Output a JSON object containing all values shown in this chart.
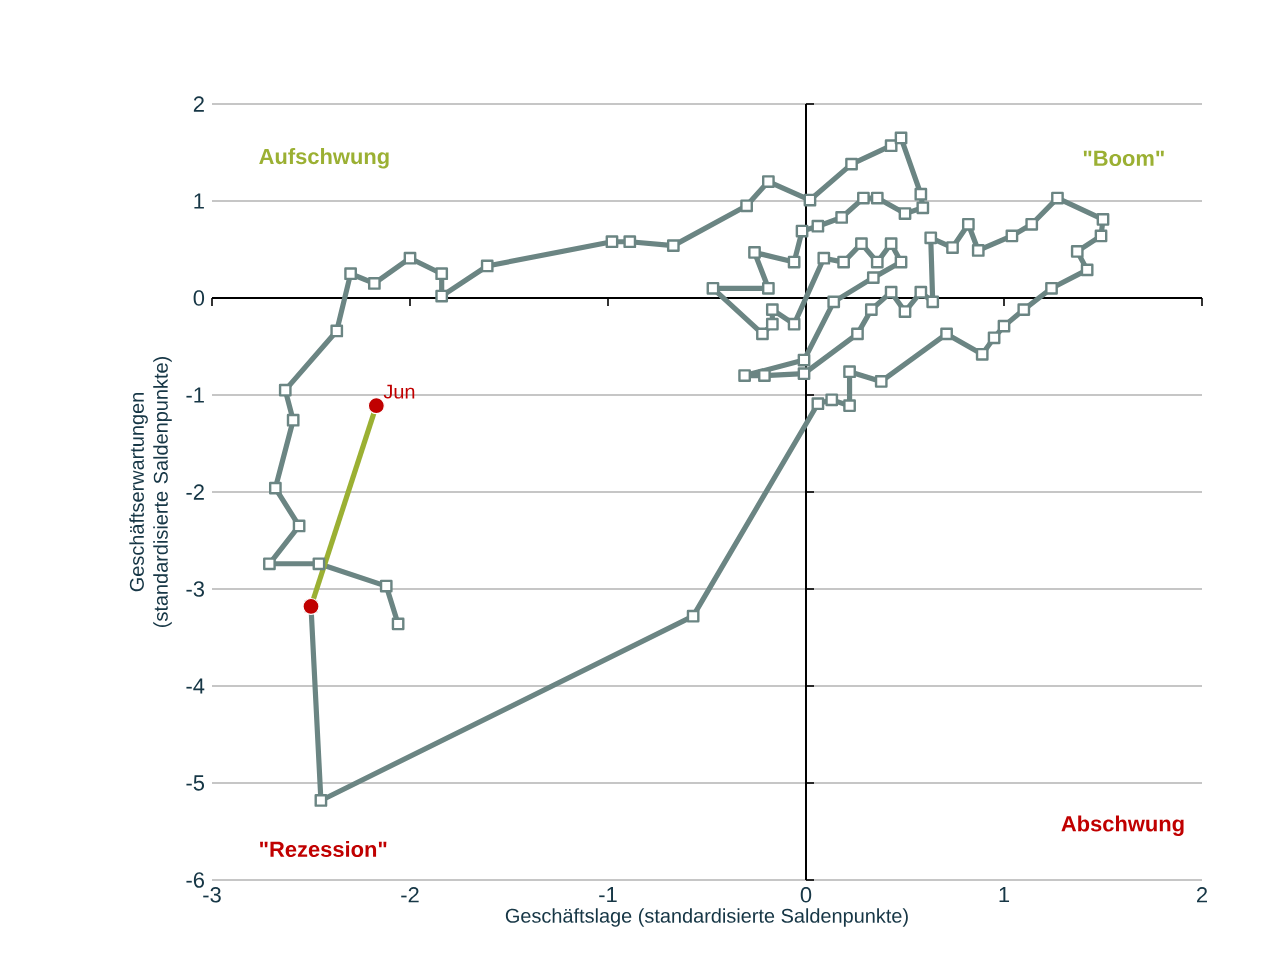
{
  "chart_data": {
    "type": "line",
    "xlabel": "Geschäftslage (standardisierte Saldenpunkte)",
    "ylabel": "Geschäftserwartungen (standardisierte Saldenpunkte)",
    "xlim": [
      -3,
      2
    ],
    "ylim": [
      -6,
      2
    ],
    "xticks": [
      -3,
      -2,
      -1,
      0,
      1,
      2
    ],
    "yticks": [
      -6,
      -5,
      -4,
      -3,
      -2,
      -1,
      0,
      1,
      2
    ],
    "grid": "y",
    "ref_lines": [
      {
        "axis": "x",
        "value": 0,
        "color": "#000000"
      }
    ],
    "series": [
      {
        "type": "line",
        "color": "#6b8583",
        "marker": "square",
        "x": [
          -2.06,
          -2.12,
          -2.46,
          -2.71,
          -2.56,
          -2.68,
          -2.59,
          -2.63,
          -2.37,
          -2.3,
          -2.18,
          -2.0,
          -1.84,
          -1.84,
          -1.61,
          -0.98,
          -0.89,
          -0.67,
          -0.3,
          -0.19,
          0.02,
          0.23,
          0.43,
          0.48,
          0.58,
          0.59,
          0.5,
          0.36,
          0.29,
          0.18,
          0.06,
          -0.02,
          -0.06,
          -0.26,
          -0.19,
          -0.47,
          -0.22,
          -0.17,
          -0.17,
          -0.06,
          0.09,
          0.19,
          0.28,
          0.36,
          0.43,
          0.48,
          0.34,
          0.14,
          -0.01,
          -0.31,
          -0.21,
          -0.01,
          0.26,
          0.33,
          0.43,
          0.5,
          0.58,
          0.64,
          0.63,
          0.74,
          0.82,
          0.87,
          1.04,
          1.14,
          1.27,
          1.5,
          1.49,
          1.37,
          1.42,
          1.24,
          1.1,
          1.0,
          0.95,
          0.89,
          0.71,
          0.38,
          0.22,
          0.22,
          0.13,
          0.06,
          -0.57,
          -2.45,
          -2.5
        ],
        "values": [
          -3.36,
          -2.97,
          -2.74,
          -2.74,
          -2.35,
          -1.96,
          -1.26,
          -0.95,
          -0.34,
          0.25,
          0.15,
          0.41,
          0.25,
          0.02,
          0.33,
          0.58,
          0.58,
          0.54,
          0.95,
          1.2,
          1.01,
          1.38,
          1.57,
          1.65,
          1.07,
          0.93,
          0.87,
          1.03,
          1.03,
          0.83,
          0.74,
          0.69,
          0.37,
          0.47,
          0.1,
          0.1,
          -0.37,
          -0.27,
          -0.12,
          -0.27,
          0.41,
          0.37,
          0.56,
          0.37,
          0.56,
          0.37,
          0.21,
          -0.04,
          -0.64,
          -0.8,
          -0.8,
          -0.78,
          -0.37,
          -0.12,
          0.06,
          -0.14,
          0.06,
          -0.04,
          0.62,
          0.52,
          0.76,
          0.49,
          0.64,
          0.76,
          1.03,
          0.81,
          0.64,
          0.48,
          0.29,
          0.1,
          -0.12,
          -0.29,
          -0.41,
          -0.58,
          -0.37,
          -0.86,
          -0.76,
          -1.11,
          -1.05,
          -1.09,
          -3.28,
          -5.18,
          -3.18
        ]
      },
      {
        "type": "line",
        "color": "#9bb033",
        "marker": "none",
        "x": [
          -2.5,
          -2.17
        ],
        "values": [
          -3.18,
          -1.11
        ]
      },
      {
        "type": "scatter",
        "color": "#c00000",
        "marker": "circle",
        "x": [
          -2.5,
          -2.17
        ],
        "values": [
          -3.18,
          -1.11
        ]
      }
    ],
    "annotations": [
      "Aufschwung",
      "\"Boom\"",
      "\"Rezession\"",
      "Abschwung",
      {
        "text": "Jun",
        "x": -2.17,
        "y": -1.11
      }
    ]
  }
}
